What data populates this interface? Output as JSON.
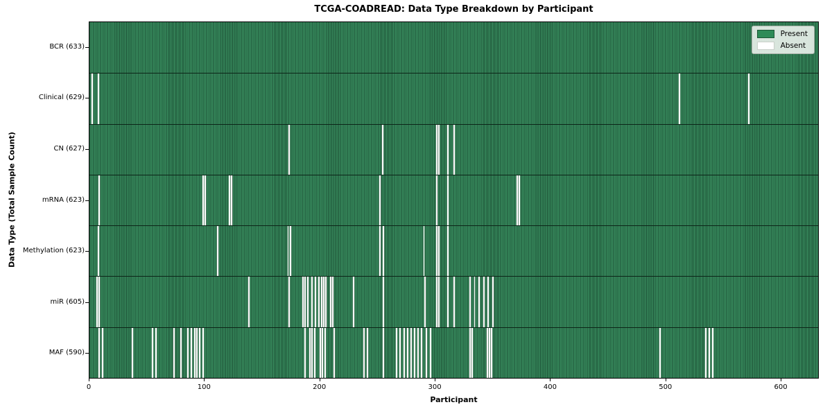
{
  "title": "TCGA-COADREAD: Data Type Breakdown by Participant",
  "xlabel": "Participant",
  "ylabel": "Data Type (Total Sample Count)",
  "legend": {
    "entries": [
      {
        "label": "Present",
        "color": "#2e8b57"
      },
      {
        "label": "Absent",
        "color": "#ffffff"
      }
    ]
  },
  "colors": {
    "present": "#2e8b57",
    "present_edge": "#1d5136",
    "absent": "#ffffff",
    "plot_border": "#000000"
  },
  "chart_data": {
    "type": "heatmap",
    "title": "TCGA-COADREAD: Data Type Breakdown by Participant",
    "xlabel": "Participant",
    "ylabel": "Data Type (Total Sample Count)",
    "x_range": [
      0,
      633
    ],
    "x_ticks": [
      0,
      100,
      200,
      300,
      400,
      500,
      600
    ],
    "total_participants": 633,
    "legend_position": "upper right",
    "grid": false,
    "value_encoding": {
      "present": "green",
      "absent": "white"
    },
    "rows": [
      {
        "label": "BCR (633)",
        "data_type": "BCR",
        "sample_count": 633,
        "absent_participants": []
      },
      {
        "label": "Clinical (629)",
        "data_type": "Clinical",
        "sample_count": 629,
        "absent_participants": [
          2,
          7,
          512,
          572
        ]
      },
      {
        "label": "CN (627)",
        "data_type": "CN",
        "sample_count": 627,
        "absent_participants": [
          173,
          254,
          301,
          303,
          311,
          316
        ]
      },
      {
        "label": "mRNA (623)",
        "data_type": "mRNA",
        "sample_count": 623,
        "absent_participants": [
          8,
          98,
          100,
          121,
          123,
          252,
          301,
          311,
          371,
          373
        ]
      },
      {
        "label": "Methylation (623)",
        "data_type": "Methylation",
        "sample_count": 623,
        "absent_participants": [
          7,
          111,
          172,
          174,
          252,
          255,
          290,
          301,
          303,
          311
        ]
      },
      {
        "label": "miR (605)",
        "data_type": "miR",
        "sample_count": 605,
        "absent_participants": [
          6,
          8,
          138,
          173,
          185,
          187,
          189,
          193,
          196,
          199,
          201,
          203,
          205,
          209,
          211,
          229,
          255,
          291,
          301,
          303,
          311,
          316,
          330,
          334,
          338,
          342,
          346,
          350
        ]
      },
      {
        "label": "MAF (590)",
        "data_type": "MAF",
        "sample_count": 590,
        "absent_participants": [
          8,
          11,
          37,
          54,
          57,
          73,
          79,
          85,
          88,
          91,
          93,
          95,
          98,
          187,
          191,
          193,
          195,
          200,
          202,
          204,
          212,
          238,
          241,
          255,
          266,
          269,
          273,
          276,
          279,
          282,
          285,
          288,
          292,
          296,
          330,
          332,
          345,
          347,
          349,
          495,
          535,
          538,
          541
        ]
      }
    ]
  }
}
